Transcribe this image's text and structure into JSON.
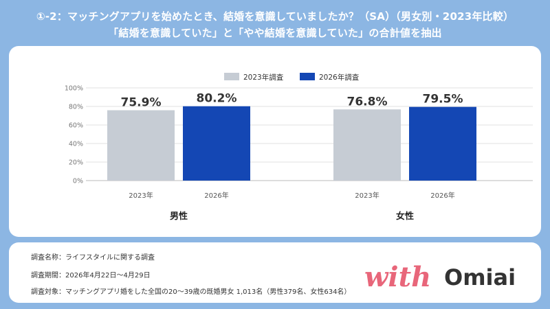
{
  "header": {
    "title_line1": "①-2：マッチングアプリを始めたとき、結婚を意識していましたか？（SA）（男女別・2023年比較）",
    "title_line2": "「結婚を意識していた」と「やや結婚を意識していた」の合計値を抽出"
  },
  "chart_data": {
    "type": "bar",
    "title": "",
    "legend": {
      "placement": "top-center",
      "entries": [
        "2023年調査",
        "2026年調査"
      ]
    },
    "groups": [
      "男性",
      "女性"
    ],
    "categories": [
      "2023年",
      "2026年"
    ],
    "series": [
      {
        "name": "2023年調査",
        "color": "#c6ccd4",
        "values": [
          75.9,
          76.8
        ],
        "labels": [
          "75.9%",
          "76.8%"
        ]
      },
      {
        "name": "2026年調査",
        "color": "#1447b4",
        "values": [
          80.2,
          79.5
        ],
        "labels": [
          "80.2%",
          "79.5%"
        ]
      }
    ],
    "yticks": [
      "0%",
      "20%",
      "40%",
      "60%",
      "80%",
      "100%"
    ],
    "ylim": [
      0,
      100
    ],
    "grid": true
  },
  "survey_info": {
    "name": "調査名称：ライフスタイルに関する調査",
    "period": "調査期間：2026年4月22日〜4月29日",
    "target": "調査対象：マッチングアプリ婚をした全国の20〜39歳の既婚男女 1,013名（男性379名、女性634名）"
  },
  "logo": {
    "text_with": "with",
    "text_omiai": "Omiai",
    "color_with": "#e8667a",
    "color_omiai": "#333333"
  }
}
